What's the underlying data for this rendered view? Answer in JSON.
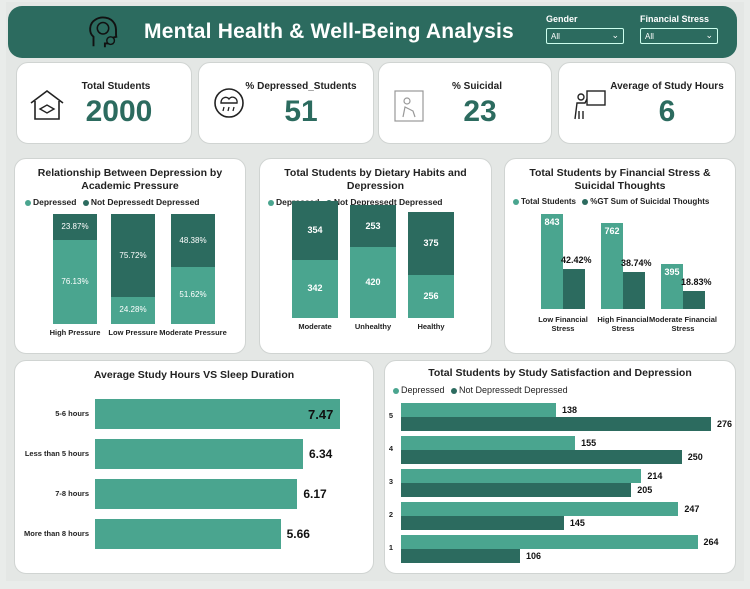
{
  "header": {
    "title": "Mental Health & Well-Being Analysis"
  },
  "filters": [
    {
      "label": "Gender",
      "value": "All"
    },
    {
      "label": "Financial Stress",
      "value": "All"
    }
  ],
  "kpis": [
    {
      "label": "Total Students",
      "value": "2000",
      "icon": "school-icon"
    },
    {
      "label": "% Depressed_Students",
      "value": "51",
      "icon": "rain-cloud-head-icon"
    },
    {
      "label": "% Suicidal",
      "value": "23",
      "icon": "sad-person-icon"
    },
    {
      "label": "Average of Study Hours",
      "value": "6",
      "icon": "teacher-board-icon"
    }
  ],
  "pressure_chart": {
    "title": "Relationship Between Depression by Academic Pressure",
    "legend": [
      "Depressed",
      "Not Depressedt Depressed"
    ],
    "categories": [
      "High Pressure",
      "Low Pressure",
      "Moderate Pressure"
    ],
    "depressed": [
      "76.13%",
      "24.28%",
      "51.62%"
    ],
    "not_depressed": [
      "23.87%",
      "75.72%",
      "48.38%"
    ],
    "depressed_pct": [
      76.13,
      24.28,
      51.62
    ]
  },
  "dietary_chart": {
    "title": "Total Students by Dietary Habits and Depression",
    "legend": [
      "Depressed",
      "Not Depressedt Depressed"
    ],
    "categories": [
      "Moderate",
      "Unhealthy",
      "Healthy"
    ],
    "depressed": [
      "342",
      "420",
      "256"
    ],
    "not_depressed": [
      "354",
      "253",
      "375"
    ],
    "depressed_n": [
      342,
      420,
      256
    ],
    "not_depressed_n": [
      354,
      253,
      375
    ]
  },
  "financial_chart": {
    "title": "Total Students by Financial Stress & Suicidal Thoughts",
    "legend": [
      "Total Students",
      "%GT Sum of Suicidal Thoughts"
    ],
    "categories": [
      "Low Financial Stress",
      "High Financial Stress",
      "Moderate Financial Stress"
    ],
    "totals": [
      "843",
      "762",
      "395"
    ],
    "suicidal": [
      "42.42%",
      "38.74%",
      "18.83%"
    ],
    "totals_n": [
      843,
      762,
      395
    ],
    "suicidal_n": [
      42.42,
      38.74,
      18.83
    ]
  },
  "study_sleep_chart": {
    "title": "Average Study Hours VS Sleep Duration",
    "categories": [
      "5-6 hours",
      "Less than 5 hours",
      "7-8 hours",
      "More than 8 hours"
    ],
    "labels": [
      "7.47",
      "6.34",
      "6.17",
      "5.66"
    ],
    "values": [
      7.47,
      6.34,
      6.17,
      5.66
    ]
  },
  "satisfaction_chart": {
    "title": "Total Students by Study Satisfaction and Depression",
    "legend": [
      "Depressed",
      "Not Depressedt Depressed"
    ],
    "categories": [
      "5",
      "4",
      "3",
      "2",
      "1"
    ],
    "depressed": [
      "138",
      "155",
      "214",
      "247",
      "264"
    ],
    "not_depressed": [
      "276",
      "250",
      "205",
      "145",
      "106"
    ],
    "depressed_n": [
      138,
      155,
      214,
      247,
      264
    ],
    "not_depressed_n": [
      276,
      250,
      205,
      145,
      106
    ]
  },
  "chart_data": [
    {
      "type": "bar",
      "title": "Relationship Between Depression by Academic Pressure",
      "categories": [
        "High Pressure",
        "Low Pressure",
        "Moderate Pressure"
      ],
      "series": [
        {
          "name": "Depressed",
          "values": [
            76.13,
            24.28,
            51.62
          ]
        },
        {
          "name": "Not Depressedt Depressed",
          "values": [
            23.87,
            75.72,
            48.38
          ]
        }
      ],
      "stacked": true
    },
    {
      "type": "bar",
      "title": "Total Students by Dietary Habits and Depression",
      "categories": [
        "Moderate",
        "Unhealthy",
        "Healthy"
      ],
      "series": [
        {
          "name": "Depressed",
          "values": [
            342,
            420,
            256
          ]
        },
        {
          "name": "Not Depressedt Depressed",
          "values": [
            354,
            253,
            375
          ]
        }
      ],
      "stacked": true
    },
    {
      "type": "bar",
      "title": "Total Students by Financial Stress & Suicidal Thoughts",
      "categories": [
        "Low Financial Stress",
        "High Financial Stress",
        "Moderate Financial Stress"
      ],
      "series": [
        {
          "name": "Total Students",
          "values": [
            843,
            762,
            395
          ]
        },
        {
          "name": "%GT Sum of Suicidal Thoughts",
          "values": [
            42.42,
            38.74,
            18.83
          ]
        }
      ]
    },
    {
      "type": "bar",
      "title": "Average Study Hours VS Sleep Duration",
      "categories": [
        "5-6 hours",
        "Less than 5 hours",
        "7-8 hours",
        "More than 8 hours"
      ],
      "values": [
        7.47,
        6.34,
        6.17,
        5.66
      ],
      "orientation": "horizontal"
    },
    {
      "type": "bar",
      "title": "Total Students by Study Satisfaction and Depression",
      "categories": [
        "5",
        "4",
        "3",
        "2",
        "1"
      ],
      "series": [
        {
          "name": "Depressed",
          "values": [
            138,
            155,
            214,
            247,
            264
          ]
        },
        {
          "name": "Not Depressedt Depressed",
          "values": [
            276,
            250,
            205,
            145,
            106
          ]
        }
      ],
      "orientation": "horizontal"
    }
  ]
}
